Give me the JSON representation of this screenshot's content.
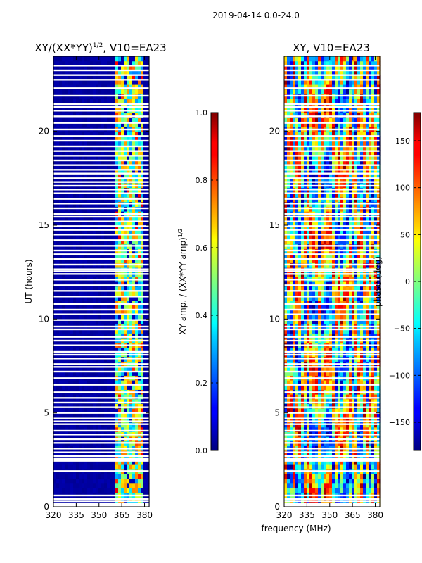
{
  "figure": {
    "suptitle": "2019-04-14 0.0-24.0",
    "xlabel_shared": "frequency (MHz)"
  },
  "colormap": "jet",
  "chart_data": [
    {
      "type": "heatmap",
      "title_base": "XY/(XX*YY)",
      "title_sup": "1/2",
      "title_suffix": ", V10=EA23",
      "ylabel": "UT (hours)",
      "xlim": [
        320,
        383
      ],
      "ylim": [
        0,
        24
      ],
      "xticks": [
        320,
        335,
        350,
        365,
        380
      ],
      "yticks": [
        0,
        5,
        10,
        15,
        20
      ],
      "colorbar": {
        "label_base": "XY amp. / (XX*YY amp)",
        "label_sup": "1/2",
        "range": [
          0.0,
          1.0
        ],
        "ticks": [
          0.0,
          0.2,
          0.4,
          0.6,
          0.8,
          1.0
        ],
        "tick_labels": [
          "0.0",
          "0.2",
          "0.4",
          "0.6",
          "0.8",
          "1.0"
        ]
      },
      "active_band_mhz": [
        360,
        380
      ],
      "background_value": 0.02
    },
    {
      "type": "heatmap",
      "title": "XY, V10=EA23",
      "ylabel": "",
      "xlim": [
        320,
        383
      ],
      "ylim": [
        0,
        24
      ],
      "xticks": [
        320,
        335,
        350,
        365,
        380
      ],
      "yticks": [
        0,
        5,
        10,
        15,
        20
      ],
      "colorbar": {
        "label": "phase (deg)",
        "range": [
          -180,
          180
        ],
        "ticks": [
          -150,
          -100,
          -50,
          0,
          50,
          100,
          150
        ],
        "tick_labels": [
          "−150",
          "−100",
          "−50",
          "0",
          "50",
          "100",
          "150"
        ]
      }
    }
  ],
  "flagged_hours": [
    0.05,
    0.15,
    0.28,
    0.42,
    0.6,
    1.9,
    2.45,
    2.55,
    2.7,
    2.9,
    3.1,
    3.4,
    3.6,
    3.85,
    4.05,
    4.4,
    4.55,
    4.7,
    5.0,
    5.3,
    5.55,
    5.8,
    6.1,
    6.5,
    6.85,
    7.2,
    7.45,
    7.6,
    7.9,
    8.1,
    8.25,
    8.6,
    8.85,
    9.05,
    9.45,
    9.6,
    9.95,
    10.25,
    10.5,
    10.8,
    11.2,
    11.5,
    11.8,
    12.1,
    12.4,
    12.55,
    12.65,
    12.9,
    13.2,
    13.45,
    13.65,
    13.9,
    14.2,
    14.5,
    14.75,
    14.95,
    15.2,
    15.45,
    15.6,
    15.9,
    16.15,
    16.4,
    16.7,
    16.9,
    17.1,
    17.3,
    17.5,
    17.75,
    17.95,
    18.2,
    18.45,
    18.7,
    18.95,
    19.2,
    19.5,
    19.75,
    20.1,
    20.45,
    20.8,
    21.1,
    21.3,
    21.45,
    21.9,
    22.3,
    22.75,
    23.0,
    23.25,
    23.5
  ]
}
